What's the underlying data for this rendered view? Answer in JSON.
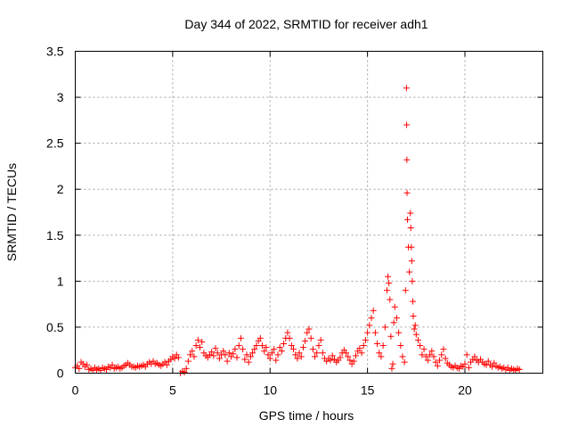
{
  "chart_data": {
    "type": "scatter",
    "title": "Day 344 of 2022, SRMTID for receiver adh1",
    "xlabel": "GPS time / hours",
    "ylabel": "SRMTID / TECUs",
    "xlim": [
      0,
      24
    ],
    "ylim": [
      0,
      3.5
    ],
    "grid": true,
    "x_ticks": [
      0,
      5,
      10,
      15,
      20
    ],
    "x_tick_labels": [
      "0",
      "5",
      "10",
      "15",
      "20"
    ],
    "y_ticks": [
      0,
      0.5,
      1,
      1.5,
      2,
      2.5,
      3,
      3.5
    ],
    "y_tick_labels": [
      "0",
      "0.5",
      "1",
      "1.5",
      "2",
      "2.5",
      "3",
      "3.5"
    ],
    "marker_color": "#ff0000",
    "marker": "plus",
    "series": [
      {
        "name": "SRMTID",
        "points": [
          [
            0.0,
            0.06
          ],
          [
            0.1,
            0.08
          ],
          [
            0.2,
            0.05
          ],
          [
            0.3,
            0.12
          ],
          [
            0.4,
            0.1
          ],
          [
            0.5,
            0.07
          ],
          [
            0.6,
            0.09
          ],
          [
            0.7,
            0.04
          ],
          [
            0.8,
            0.05
          ],
          [
            0.9,
            0.03
          ],
          [
            1.0,
            0.06
          ],
          [
            1.1,
            0.04
          ],
          [
            1.2,
            0.05
          ],
          [
            1.3,
            0.03
          ],
          [
            1.4,
            0.06
          ],
          [
            1.5,
            0.05
          ],
          [
            1.6,
            0.04
          ],
          [
            1.7,
            0.07
          ],
          [
            1.8,
            0.06
          ],
          [
            1.9,
            0.09
          ],
          [
            2.0,
            0.05
          ],
          [
            2.1,
            0.06
          ],
          [
            2.2,
            0.07
          ],
          [
            2.3,
            0.05
          ],
          [
            2.4,
            0.06
          ],
          [
            2.5,
            0.08
          ],
          [
            2.6,
            0.09
          ],
          [
            2.7,
            0.11
          ],
          [
            2.8,
            0.09
          ],
          [
            2.9,
            0.07
          ],
          [
            3.0,
            0.07
          ],
          [
            3.1,
            0.06
          ],
          [
            3.2,
            0.08
          ],
          [
            3.3,
            0.07
          ],
          [
            3.4,
            0.08
          ],
          [
            3.5,
            0.09
          ],
          [
            3.6,
            0.07
          ],
          [
            3.7,
            0.1
          ],
          [
            3.8,
            0.12
          ],
          [
            3.9,
            0.1
          ],
          [
            4.0,
            0.13
          ],
          [
            4.1,
            0.1
          ],
          [
            4.2,
            0.11
          ],
          [
            4.3,
            0.09
          ],
          [
            4.4,
            0.08
          ],
          [
            4.5,
            0.1
          ],
          [
            4.6,
            0.12
          ],
          [
            4.7,
            0.09
          ],
          [
            4.8,
            0.13
          ],
          [
            4.9,
            0.15
          ],
          [
            5.0,
            0.18
          ],
          [
            5.1,
            0.16
          ],
          [
            5.2,
            0.2
          ],
          [
            5.3,
            0.17
          ],
          [
            5.4,
            0.0
          ],
          [
            5.5,
            0.02
          ],
          [
            5.6,
            0.01
          ],
          [
            5.7,
            0.05
          ],
          [
            5.8,
            0.13
          ],
          [
            5.9,
            0.2
          ],
          [
            6.0,
            0.24
          ],
          [
            6.1,
            0.18
          ],
          [
            6.2,
            0.3
          ],
          [
            6.3,
            0.36
          ],
          [
            6.4,
            0.28
          ],
          [
            6.5,
            0.34
          ],
          [
            6.6,
            0.22
          ],
          [
            6.7,
            0.19
          ],
          [
            6.8,
            0.17
          ],
          [
            6.9,
            0.2
          ],
          [
            7.0,
            0.23
          ],
          [
            7.1,
            0.19
          ],
          [
            7.2,
            0.27
          ],
          [
            7.3,
            0.22
          ],
          [
            7.4,
            0.16
          ],
          [
            7.5,
            0.2
          ],
          [
            7.6,
            0.24
          ],
          [
            7.7,
            0.2
          ],
          [
            7.8,
            0.13
          ],
          [
            7.9,
            0.22
          ],
          [
            8.0,
            0.18
          ],
          [
            8.1,
            0.21
          ],
          [
            8.2,
            0.26
          ],
          [
            8.3,
            0.17
          ],
          [
            8.4,
            0.3
          ],
          [
            8.5,
            0.38
          ],
          [
            8.6,
            0.26
          ],
          [
            8.7,
            0.15
          ],
          [
            8.8,
            0.2
          ],
          [
            8.9,
            0.12
          ],
          [
            9.0,
            0.18
          ],
          [
            9.1,
            0.22
          ],
          [
            9.2,
            0.26
          ],
          [
            9.3,
            0.3
          ],
          [
            9.4,
            0.35
          ],
          [
            9.5,
            0.38
          ],
          [
            9.6,
            0.3
          ],
          [
            9.7,
            0.24
          ],
          [
            9.8,
            0.28
          ],
          [
            9.9,
            0.2
          ],
          [
            10.0,
            0.16
          ],
          [
            10.1,
            0.22
          ],
          [
            10.2,
            0.26
          ],
          [
            10.3,
            0.14
          ],
          [
            10.4,
            0.2
          ],
          [
            10.5,
            0.28
          ],
          [
            10.6,
            0.24
          ],
          [
            10.7,
            0.32
          ],
          [
            10.8,
            0.38
          ],
          [
            10.9,
            0.44
          ],
          [
            11.0,
            0.38
          ],
          [
            11.1,
            0.3
          ],
          [
            11.2,
            0.26
          ],
          [
            11.3,
            0.2
          ],
          [
            11.4,
            0.16
          ],
          [
            11.5,
            0.22
          ],
          [
            11.6,
            0.18
          ],
          [
            11.7,
            0.28
          ],
          [
            11.8,
            0.35
          ],
          [
            11.9,
            0.44
          ],
          [
            12.0,
            0.48
          ],
          [
            12.1,
            0.38
          ],
          [
            12.2,
            0.26
          ],
          [
            12.3,
            0.18
          ],
          [
            12.4,
            0.22
          ],
          [
            12.5,
            0.3
          ],
          [
            12.6,
            0.36
          ],
          [
            12.7,
            0.22
          ],
          [
            12.8,
            0.16
          ],
          [
            12.9,
            0.13
          ],
          [
            13.0,
            0.16
          ],
          [
            13.1,
            0.14
          ],
          [
            13.2,
            0.19
          ],
          [
            13.3,
            0.15
          ],
          [
            13.4,
            0.12
          ],
          [
            13.5,
            0.14
          ],
          [
            13.6,
            0.17
          ],
          [
            13.7,
            0.22
          ],
          [
            13.8,
            0.25
          ],
          [
            13.9,
            0.22
          ],
          [
            14.0,
            0.18
          ],
          [
            14.1,
            0.14
          ],
          [
            14.2,
            0.1
          ],
          [
            14.3,
            0.13
          ],
          [
            14.4,
            0.19
          ],
          [
            14.5,
            0.24
          ],
          [
            14.6,
            0.27
          ],
          [
            14.7,
            0.22
          ],
          [
            14.8,
            0.3
          ],
          [
            14.9,
            0.36
          ],
          [
            15.0,
            0.44
          ],
          [
            15.1,
            0.52
          ],
          [
            15.2,
            0.6
          ],
          [
            15.3,
            0.68
          ],
          [
            15.4,
            0.44
          ],
          [
            15.5,
            0.32
          ],
          [
            15.6,
            0.22
          ],
          [
            15.7,
            0.18
          ],
          [
            15.8,
            0.3
          ],
          [
            15.9,
            0.5
          ],
          [
            16.0,
            0.9
          ],
          [
            16.05,
            1.05
          ],
          [
            16.1,
            0.98
          ],
          [
            16.15,
            0.8
          ],
          [
            16.2,
            0.4
          ],
          [
            16.25,
            0.05
          ],
          [
            16.3,
            0.1
          ],
          [
            16.35,
            0.55
          ],
          [
            16.4,
            0.72
          ],
          [
            16.5,
            0.6
          ],
          [
            16.6,
            0.44
          ],
          [
            16.7,
            0.3
          ],
          [
            16.8,
            0.18
          ],
          [
            16.9,
            0.12
          ],
          [
            16.95,
            0.9
          ],
          [
            17.0,
            3.1
          ],
          [
            17.01,
            2.7
          ],
          [
            17.02,
            2.32
          ],
          [
            17.03,
            1.96
          ],
          [
            17.05,
            1.67
          ],
          [
            17.1,
            1.37
          ],
          [
            17.15,
            1.1
          ],
          [
            17.2,
            1.74
          ],
          [
            17.22,
            1.58
          ],
          [
            17.25,
            1.37
          ],
          [
            17.27,
            1.22
          ],
          [
            17.3,
            1.0
          ],
          [
            17.33,
            0.78
          ],
          [
            17.35,
            0.62
          ],
          [
            17.4,
            0.48
          ],
          [
            17.45,
            0.52
          ],
          [
            17.5,
            0.42
          ],
          [
            17.6,
            0.36
          ],
          [
            17.7,
            0.3
          ],
          [
            17.8,
            0.2
          ],
          [
            17.9,
            0.26
          ],
          [
            18.0,
            0.18
          ],
          [
            18.1,
            0.14
          ],
          [
            18.2,
            0.2
          ],
          [
            18.3,
            0.24
          ],
          [
            18.4,
            0.18
          ],
          [
            18.5,
            0.12
          ],
          [
            18.6,
            0.08
          ],
          [
            18.7,
            0.14
          ],
          [
            18.8,
            0.2
          ],
          [
            18.9,
            0.26
          ],
          [
            19.0,
            0.16
          ],
          [
            19.1,
            0.11
          ],
          [
            19.2,
            0.09
          ],
          [
            19.3,
            0.07
          ],
          [
            19.4,
            0.06
          ],
          [
            19.5,
            0.08
          ],
          [
            19.6,
            0.06
          ],
          [
            19.7,
            0.05
          ],
          [
            19.8,
            0.08
          ],
          [
            19.9,
            0.07
          ],
          [
            20.0,
            0.1
          ],
          [
            20.1,
            0.2
          ],
          [
            20.2,
            0.06
          ],
          [
            20.3,
            0.12
          ],
          [
            20.4,
            0.15
          ],
          [
            20.5,
            0.18
          ],
          [
            20.6,
            0.14
          ],
          [
            20.7,
            0.12
          ],
          [
            20.8,
            0.15
          ],
          [
            20.9,
            0.12
          ],
          [
            21.0,
            0.1
          ],
          [
            21.1,
            0.09
          ],
          [
            21.2,
            0.13
          ],
          [
            21.3,
            0.09
          ],
          [
            21.4,
            0.07
          ],
          [
            21.5,
            0.11
          ],
          [
            21.6,
            0.08
          ],
          [
            21.7,
            0.06
          ],
          [
            21.8,
            0.07
          ],
          [
            21.9,
            0.05
          ],
          [
            22.0,
            0.06
          ],
          [
            22.1,
            0.04
          ],
          [
            22.2,
            0.06
          ],
          [
            22.3,
            0.03
          ],
          [
            22.4,
            0.05
          ],
          [
            22.5,
            0.04
          ],
          [
            22.6,
            0.03
          ],
          [
            22.7,
            0.05
          ],
          [
            22.8,
            0.04
          ]
        ]
      }
    ]
  }
}
